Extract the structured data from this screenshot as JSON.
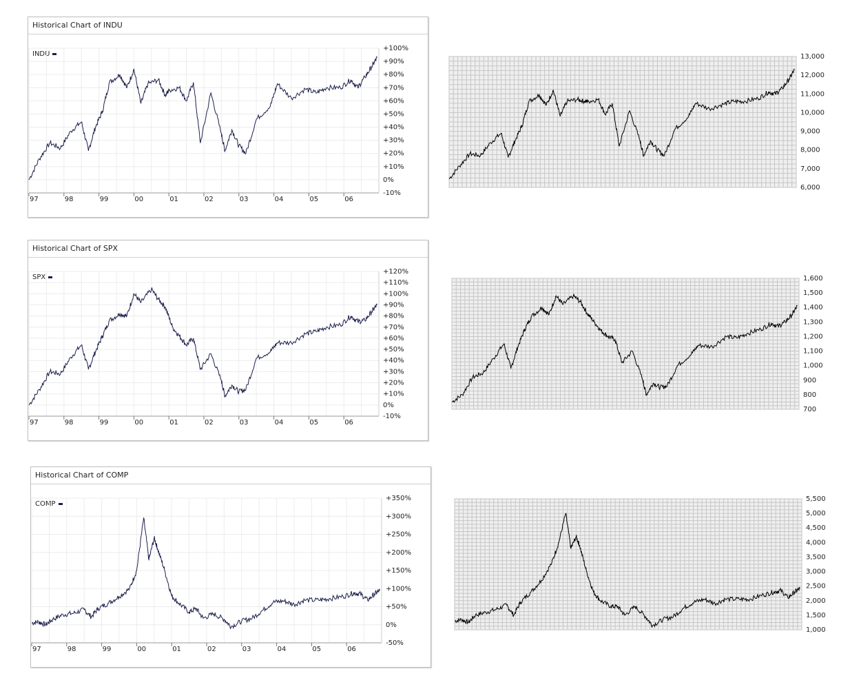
{
  "panels": [
    {
      "title": "Historical Chart of INDU",
      "legend": "INDU"
    },
    {
      "title": "Historical Chart of SPX",
      "legend": "SPX"
    },
    {
      "title": "Historical Chart of COMP",
      "legend": "COMP"
    }
  ],
  "chart_data": [
    {
      "type": "line",
      "title": "Historical Chart of INDU",
      "series": [
        {
          "name": "INDU",
          "color": "#1b1f4a",
          "x": [
            1997.0,
            1997.3,
            1997.6,
            1997.9,
            1998.2,
            1998.5,
            1998.7,
            1998.9,
            1999.1,
            1999.3,
            1999.6,
            1999.8,
            2000.0,
            2000.2,
            2000.4,
            2000.7,
            2000.9,
            2001.0,
            2001.3,
            2001.5,
            2001.7,
            2001.9,
            2002.2,
            2002.5,
            2002.6,
            2002.8,
            2003.0,
            2003.2,
            2003.5,
            2003.9,
            2004.1,
            2004.5,
            2004.9,
            2005.2,
            2005.5,
            2005.9,
            2006.2,
            2006.4,
            2006.6,
            2006.8,
            2006.95
          ],
          "values": [
            0,
            16,
            28,
            24,
            37,
            44,
            22,
            40,
            52,
            74,
            80,
            70,
            84,
            58,
            73,
            76,
            64,
            68,
            70,
            60,
            74,
            28,
            66,
            35,
            22,
            38,
            26,
            20,
            46,
            56,
            73,
            62,
            69,
            66,
            70,
            70,
            76,
            70,
            78,
            86,
            93
          ]
        }
      ],
      "x_tick_labels": [
        "97",
        "98",
        "99",
        "00",
        "01",
        "02",
        "03",
        "04",
        "05",
        "06"
      ],
      "y_tick_labels": [
        "+100%",
        "+90%",
        "+80%",
        "+70%",
        "+60%",
        "+50%",
        "+40%",
        "+30%",
        "+20%",
        "+10%",
        "0%",
        "-10%"
      ],
      "xlim": [
        1997,
        2007
      ],
      "ylim": [
        -10,
        100
      ],
      "grid": true
    },
    {
      "type": "line",
      "series": [
        {
          "color": "#000000",
          "x": [
            1997.0,
            1997.3,
            1997.6,
            1997.9,
            1998.2,
            1998.5,
            1998.7,
            1998.9,
            1999.1,
            1999.3,
            1999.6,
            1999.8,
            2000.0,
            2000.2,
            2000.4,
            2000.7,
            2000.9,
            2001.0,
            2001.3,
            2001.5,
            2001.7,
            2001.9,
            2002.2,
            2002.5,
            2002.6,
            2002.8,
            2003.0,
            2003.2,
            2003.5,
            2003.9,
            2004.1,
            2004.5,
            2004.9,
            2005.2,
            2005.5,
            2005.9,
            2006.2,
            2006.4,
            2006.6,
            2006.8,
            2006.95
          ],
          "values": [
            6450,
            7150,
            7800,
            7700,
            8400,
            8900,
            7600,
            8500,
            9300,
            10600,
            10950,
            10400,
            11200,
            9800,
            10600,
            10700,
            10600,
            10600,
            10700,
            9900,
            10500,
            8200,
            10100,
            8500,
            7700,
            8500,
            8000,
            7700,
            9100,
            9800,
            10500,
            10200,
            10450,
            10600,
            10600,
            10750,
            11100,
            11000,
            11300,
            11800,
            12300
          ]
        }
      ],
      "y_tick_labels": [
        "13,000",
        "12,000",
        "11,000",
        "10,000",
        "9,000",
        "8,000",
        "7,000",
        "6,000"
      ],
      "xlim": [
        1997,
        2007
      ],
      "ylim": [
        6000,
        13000
      ],
      "grid": true
    },
    {
      "type": "line",
      "title": "Historical Chart of SPX",
      "series": [
        {
          "name": "SPX",
          "color": "#1b1f4a",
          "x": [
            1997.0,
            1997.3,
            1997.6,
            1997.9,
            1998.2,
            1998.5,
            1998.7,
            1998.9,
            1999.1,
            1999.3,
            1999.6,
            1999.8,
            2000.0,
            2000.2,
            2000.5,
            2000.7,
            2000.9,
            2001.1,
            2001.3,
            2001.5,
            2001.7,
            2001.9,
            2002.2,
            2002.5,
            2002.6,
            2002.8,
            2003.0,
            2003.2,
            2003.5,
            2003.9,
            2004.1,
            2004.5,
            2004.9,
            2005.2,
            2005.5,
            2005.9,
            2006.2,
            2006.4,
            2006.6,
            2006.8,
            2006.95
          ],
          "values": [
            0,
            14,
            30,
            28,
            43,
            54,
            32,
            48,
            62,
            76,
            82,
            80,
            100,
            92,
            104,
            95,
            88,
            70,
            62,
            54,
            60,
            32,
            46,
            22,
            8,
            18,
            12,
            14,
            42,
            48,
            56,
            56,
            64,
            66,
            70,
            72,
            80,
            75,
            76,
            84,
            90
          ]
        }
      ],
      "x_tick_labels": [
        "97",
        "98",
        "99",
        "00",
        "01",
        "02",
        "03",
        "04",
        "05",
        "06"
      ],
      "y_tick_labels": [
        "+120%",
        "+110%",
        "+100%",
        "+90%",
        "+80%",
        "+70%",
        "+60%",
        "+50%",
        "+40%",
        "+30%",
        "+20%",
        "+10%",
        "0%",
        "-10%"
      ],
      "xlim": [
        1997,
        2007
      ],
      "ylim": [
        -10,
        120
      ],
      "grid": true
    },
    {
      "type": "line",
      "series": [
        {
          "color": "#000000",
          "x": [
            1997.0,
            1997.3,
            1997.6,
            1997.9,
            1998.2,
            1998.5,
            1998.7,
            1998.9,
            1999.1,
            1999.3,
            1999.6,
            1999.8,
            2000.0,
            2000.2,
            2000.5,
            2000.7,
            2000.9,
            2001.1,
            2001.3,
            2001.5,
            2001.7,
            2001.9,
            2002.2,
            2002.5,
            2002.6,
            2002.8,
            2003.0,
            2003.2,
            2003.5,
            2003.9,
            2004.1,
            2004.5,
            2004.9,
            2005.2,
            2005.5,
            2005.9,
            2006.2,
            2006.4,
            2006.6,
            2006.8,
            2006.95
          ],
          "values": [
            750,
            800,
            920,
            950,
            1050,
            1150,
            980,
            1130,
            1250,
            1340,
            1400,
            1350,
            1480,
            1420,
            1480,
            1440,
            1360,
            1300,
            1240,
            1200,
            1180,
            1020,
            1100,
            900,
            800,
            880,
            850,
            860,
            1000,
            1080,
            1140,
            1130,
            1200,
            1190,
            1220,
            1250,
            1290,
            1270,
            1300,
            1350,
            1410
          ]
        }
      ],
      "y_tick_labels": [
        "1,600",
        "1,500",
        "1,400",
        "1,300",
        "1,200",
        "1,100",
        "1,000",
        "900",
        "800",
        "700"
      ],
      "xlim": [
        1997,
        2007
      ],
      "ylim": [
        700,
        1600
      ],
      "grid": true
    },
    {
      "type": "line",
      "title": "Historical Chart of COMP",
      "series": [
        {
          "name": "COMP",
          "color": "#1b1f4a",
          "x": [
            1997.0,
            1997.2,
            1997.4,
            1997.6,
            1997.9,
            1998.2,
            1998.5,
            1998.7,
            1998.9,
            1999.2,
            1999.5,
            1999.8,
            2000.0,
            2000.2,
            2000.35,
            2000.5,
            2000.6,
            2000.8,
            2001.0,
            2001.2,
            2001.5,
            2001.7,
            2001.9,
            2002.2,
            2002.5,
            2002.7,
            2003.0,
            2003.3,
            2003.6,
            2003.9,
            2004.2,
            2004.5,
            2004.8,
            2005.2,
            2005.5,
            2005.9,
            2006.2,
            2006.4,
            2006.6,
            2006.8,
            2006.95
          ],
          "values": [
            5,
            8,
            0,
            15,
            28,
            32,
            42,
            22,
            45,
            60,
            78,
            100,
            150,
            295,
            180,
            240,
            210,
            150,
            80,
            60,
            35,
            45,
            18,
            30,
            15,
            -5,
            10,
            18,
            40,
            62,
            66,
            56,
            68,
            68,
            72,
            78,
            88,
            85,
            68,
            85,
            95
          ]
        }
      ],
      "x_tick_labels": [
        "97",
        "98",
        "99",
        "00",
        "01",
        "02",
        "03",
        "04",
        "05",
        "06"
      ],
      "y_tick_labels": [
        "+350%",
        "+300%",
        "+250%",
        "+200%",
        "+150%",
        "+100%",
        "+50%",
        "0%",
        "-50%"
      ],
      "xlim": [
        1997,
        2007
      ],
      "ylim": [
        -50,
        350
      ],
      "grid": true
    },
    {
      "type": "line",
      "series": [
        {
          "color": "#000000",
          "x": [
            1997.0,
            1997.2,
            1997.4,
            1997.6,
            1997.9,
            1998.2,
            1998.5,
            1998.7,
            1998.9,
            1999.2,
            1999.5,
            1999.8,
            2000.0,
            2000.2,
            2000.35,
            2000.5,
            2000.6,
            2000.8,
            2001.0,
            2001.2,
            2001.5,
            2001.7,
            2001.9,
            2002.2,
            2002.5,
            2002.7,
            2003.0,
            2003.3,
            2003.6,
            2003.9,
            2004.2,
            2004.5,
            2004.8,
            2005.2,
            2005.5,
            2005.9,
            2006.2,
            2006.4,
            2006.6,
            2006.8,
            2006.95
          ],
          "values": [
            1300,
            1350,
            1250,
            1500,
            1600,
            1700,
            1850,
            1500,
            1950,
            2300,
            2700,
            3300,
            4000,
            5000,
            3800,
            4200,
            3900,
            3000,
            2300,
            2000,
            1800,
            1800,
            1500,
            1800,
            1450,
            1150,
            1350,
            1450,
            1750,
            1950,
            2050,
            1900,
            2050,
            2050,
            2050,
            2200,
            2300,
            2350,
            2100,
            2300,
            2420
          ]
        }
      ],
      "y_tick_labels": [
        "5,500",
        "5,000",
        "4,500",
        "4,000",
        "3,500",
        "3,000",
        "2,500",
        "2,000",
        "1,500",
        "1,000"
      ],
      "xlim": [
        1997,
        2007
      ],
      "ylim": [
        1000,
        5500
      ],
      "grid": true
    }
  ]
}
